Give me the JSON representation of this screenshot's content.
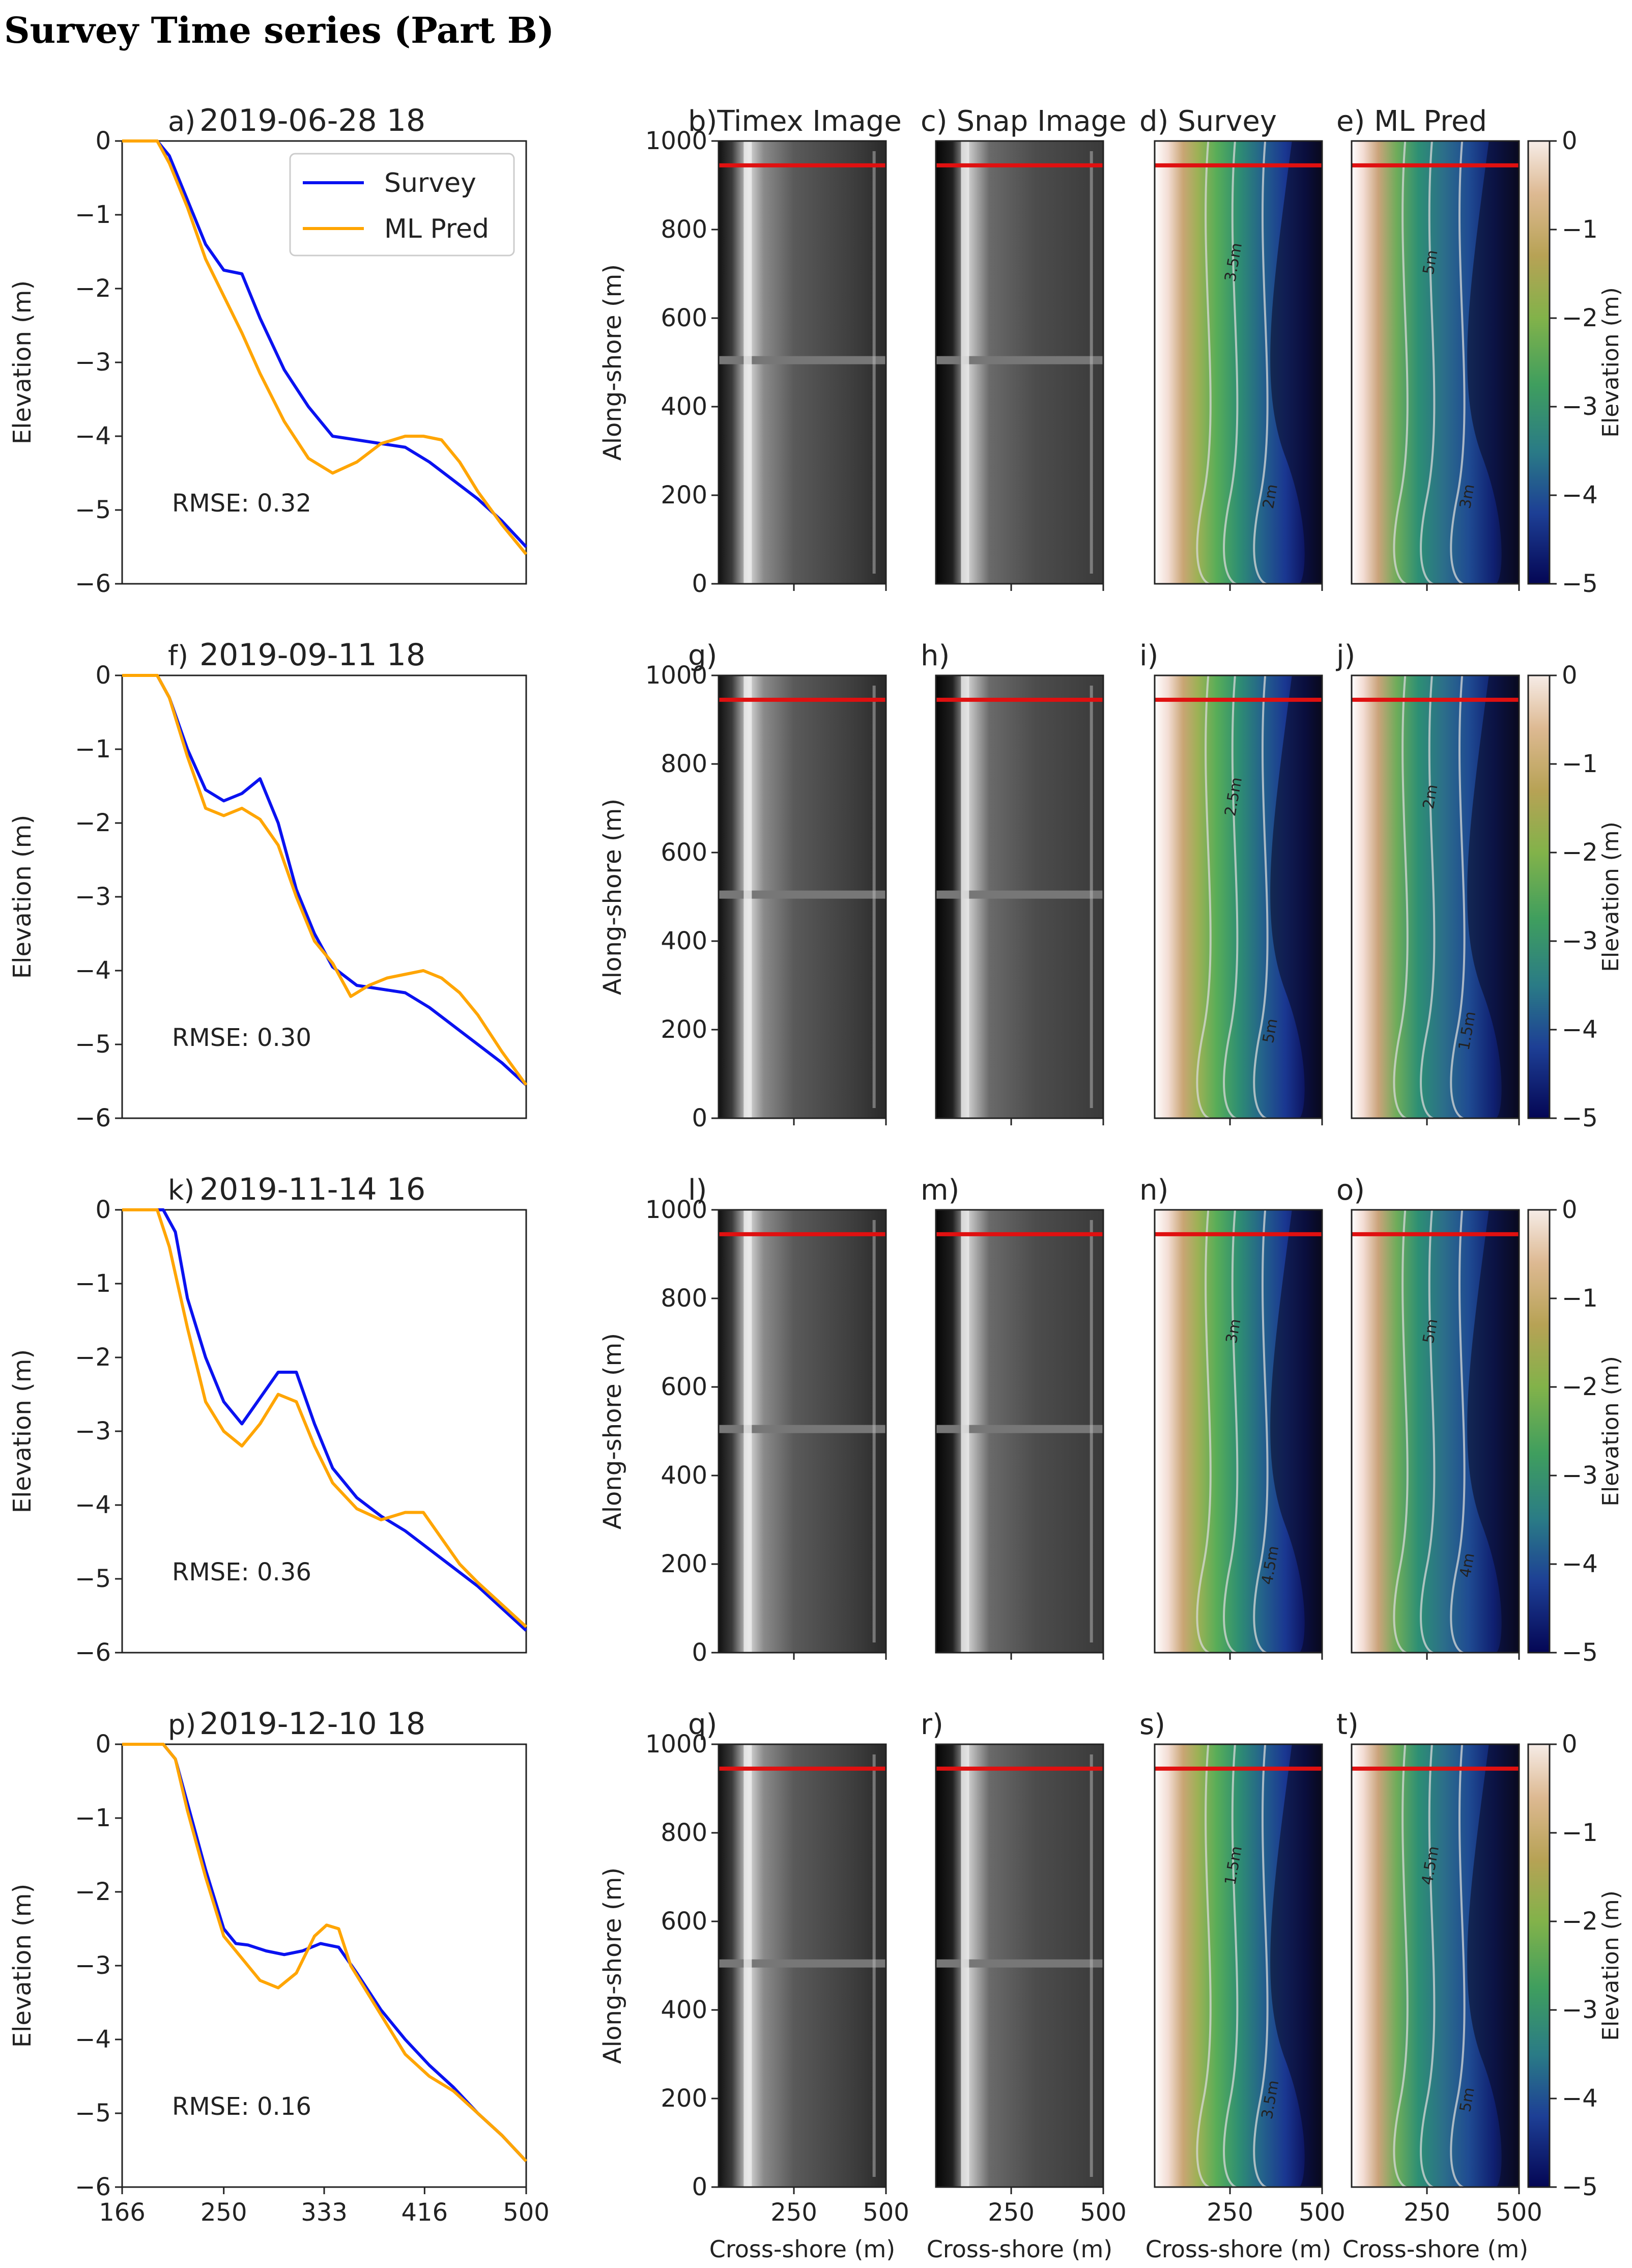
{
  "title": "Survey Time series (Part B)",
  "colors": {
    "survey": "#0a12f0",
    "ml_pred": "#ffa500",
    "rmse": "#a020a0",
    "transect": "#e01010"
  },
  "colorbar": {
    "label": "Elevation (m)",
    "ticks": [
      "0",
      "−1",
      "−2",
      "−3",
      "−4",
      "−5"
    ],
    "range": [
      -5,
      0
    ]
  },
  "image_axes": {
    "ylabel": "Along-shore (m)",
    "xlabel": "Cross-shore (m)",
    "yticks": [
      "0",
      "200",
      "400",
      "600",
      "800",
      "1000"
    ],
    "xticks": [
      "250",
      "500"
    ],
    "transect_alongshore": 945
  },
  "contour_labels": [
    "4.5m",
    "4m",
    "3.5m",
    "5m",
    "2.5m",
    "2m",
    "3m",
    "5m",
    "1.5m"
  ],
  "chart_data": [
    {
      "type": "line",
      "panel": "a)",
      "title": "2019-06-28 18",
      "xlabel": "",
      "ylabel": "Elevation (m)",
      "xlim": [
        166,
        500
      ],
      "ylim": [
        -6,
        0
      ],
      "xticks": [],
      "yticks": [
        "0",
        "−1",
        "−2",
        "−3",
        "−4",
        "−5",
        "−6"
      ],
      "legend": [
        "Survey",
        "ML Pred"
      ],
      "rmse": "RMSE: 0.32",
      "series": [
        {
          "name": "Survey",
          "x": [
            166,
            195,
            205,
            220,
            235,
            250,
            265,
            280,
            300,
            320,
            340,
            360,
            380,
            400,
            420,
            440,
            460,
            480,
            500
          ],
          "y": [
            0,
            0,
            -0.2,
            -0.8,
            -1.4,
            -1.75,
            -1.8,
            -2.4,
            -3.1,
            -3.6,
            -4.0,
            -4.05,
            -4.1,
            -4.15,
            -4.35,
            -4.6,
            -4.85,
            -5.15,
            -5.5
          ]
        },
        {
          "name": "ML Pred",
          "x": [
            166,
            195,
            205,
            220,
            235,
            250,
            265,
            280,
            300,
            320,
            340,
            360,
            380,
            400,
            415,
            430,
            445,
            460,
            480,
            500
          ],
          "y": [
            0,
            0,
            -0.3,
            -0.9,
            -1.6,
            -2.1,
            -2.6,
            -3.15,
            -3.8,
            -4.3,
            -4.5,
            -4.35,
            -4.1,
            -4.0,
            -4.0,
            -4.05,
            -4.35,
            -4.75,
            -5.2,
            -5.6
          ]
        }
      ],
      "image_titles": [
        "b)Timex Image",
        "c) Snap Image",
        "d) Survey",
        "e)  ML Pred"
      ]
    },
    {
      "type": "line",
      "panel": "f)",
      "title": "2019-09-11 18",
      "xlabel": "",
      "ylabel": "Elevation (m)",
      "xlim": [
        166,
        500
      ],
      "ylim": [
        -6,
        0
      ],
      "xticks": [],
      "yticks": [
        "0",
        "−1",
        "−2",
        "−3",
        "−4",
        "−5",
        "−6"
      ],
      "rmse": "RMSE: 0.30",
      "series": [
        {
          "name": "Survey",
          "x": [
            166,
            195,
            205,
            220,
            235,
            250,
            265,
            280,
            295,
            310,
            325,
            340,
            360,
            380,
            400,
            420,
            440,
            460,
            480,
            500
          ],
          "y": [
            0,
            0,
            -0.3,
            -1.0,
            -1.55,
            -1.7,
            -1.6,
            -1.4,
            -2.0,
            -2.9,
            -3.5,
            -3.95,
            -4.2,
            -4.25,
            -4.3,
            -4.5,
            -4.75,
            -5.0,
            -5.25,
            -5.55
          ]
        },
        {
          "name": "ML Pred",
          "x": [
            166,
            195,
            205,
            220,
            235,
            250,
            265,
            280,
            295,
            310,
            325,
            340,
            355,
            370,
            385,
            400,
            415,
            430,
            445,
            460,
            480,
            500
          ],
          "y": [
            0,
            0,
            -0.3,
            -1.1,
            -1.8,
            -1.9,
            -1.8,
            -1.95,
            -2.3,
            -3.0,
            -3.6,
            -3.9,
            -4.35,
            -4.2,
            -4.1,
            -4.05,
            -4.0,
            -4.1,
            -4.3,
            -4.6,
            -5.1,
            -5.55
          ]
        }
      ],
      "image_titles": [
        "g)",
        "h)",
        "i)",
        "j)"
      ]
    },
    {
      "type": "line",
      "panel": "k)",
      "title": "2019-11-14 16",
      "xlabel": "",
      "ylabel": "Elevation (m)",
      "xlim": [
        166,
        500
      ],
      "ylim": [
        -6,
        0
      ],
      "xticks": [],
      "yticks": [
        "0",
        "−1",
        "−2",
        "−3",
        "−4",
        "−5",
        "−6"
      ],
      "rmse": "RMSE: 0.36",
      "series": [
        {
          "name": "Survey",
          "x": [
            166,
            200,
            210,
            220,
            235,
            250,
            265,
            280,
            295,
            310,
            325,
            340,
            360,
            380,
            400,
            420,
            440,
            460,
            480,
            500
          ],
          "y": [
            0,
            0,
            -0.3,
            -1.2,
            -2.0,
            -2.6,
            -2.9,
            -2.55,
            -2.2,
            -2.2,
            -2.9,
            -3.5,
            -3.9,
            -4.15,
            -4.35,
            -4.6,
            -4.85,
            -5.1,
            -5.4,
            -5.7
          ]
        },
        {
          "name": "ML Pred",
          "x": [
            166,
            195,
            205,
            220,
            235,
            250,
            265,
            280,
            295,
            310,
            325,
            340,
            360,
            380,
            400,
            415,
            430,
            445,
            460,
            480,
            500
          ],
          "y": [
            0,
            0,
            -0.5,
            -1.6,
            -2.6,
            -3.0,
            -3.2,
            -2.9,
            -2.5,
            -2.6,
            -3.2,
            -3.7,
            -4.05,
            -4.2,
            -4.1,
            -4.1,
            -4.45,
            -4.8,
            -5.05,
            -5.35,
            -5.65
          ]
        }
      ],
      "image_titles": [
        "l)",
        "m)",
        "n)",
        "o)"
      ]
    },
    {
      "type": "line",
      "panel": "p)",
      "title": "2019-12-10 18",
      "xlabel": "",
      "ylabel": "Elevation (m)",
      "xlim": [
        166,
        500
      ],
      "ylim": [
        -6,
        0
      ],
      "xticks": [
        "166",
        "250",
        "333",
        "416",
        "500"
      ],
      "yticks": [
        "0",
        "−1",
        "−2",
        "−3",
        "−4",
        "−5",
        "−6"
      ],
      "rmse": "RMSE: 0.16",
      "series": [
        {
          "name": "Survey",
          "x": [
            166,
            200,
            210,
            220,
            235,
            250,
            260,
            270,
            285,
            300,
            315,
            330,
            345,
            360,
            380,
            400,
            420,
            440,
            460,
            480,
            500
          ],
          "y": [
            0,
            0,
            -0.2,
            -0.8,
            -1.7,
            -2.5,
            -2.7,
            -2.72,
            -2.8,
            -2.85,
            -2.8,
            -2.7,
            -2.75,
            -3.1,
            -3.6,
            -4.0,
            -4.35,
            -4.65,
            -5.0,
            -5.3,
            -5.65
          ]
        },
        {
          "name": "ML Pred",
          "x": [
            166,
            200,
            210,
            220,
            235,
            250,
            265,
            280,
            295,
            310,
            325,
            335,
            345,
            355,
            370,
            385,
            400,
            420,
            440,
            460,
            480,
            500
          ],
          "y": [
            0,
            0,
            -0.2,
            -0.9,
            -1.8,
            -2.6,
            -2.9,
            -3.2,
            -3.3,
            -3.1,
            -2.6,
            -2.45,
            -2.5,
            -3.0,
            -3.4,
            -3.8,
            -4.2,
            -4.5,
            -4.7,
            -5.0,
            -5.3,
            -5.65
          ]
        }
      ],
      "image_titles": [
        "q)",
        "r)",
        "s)",
        "t)"
      ]
    }
  ]
}
